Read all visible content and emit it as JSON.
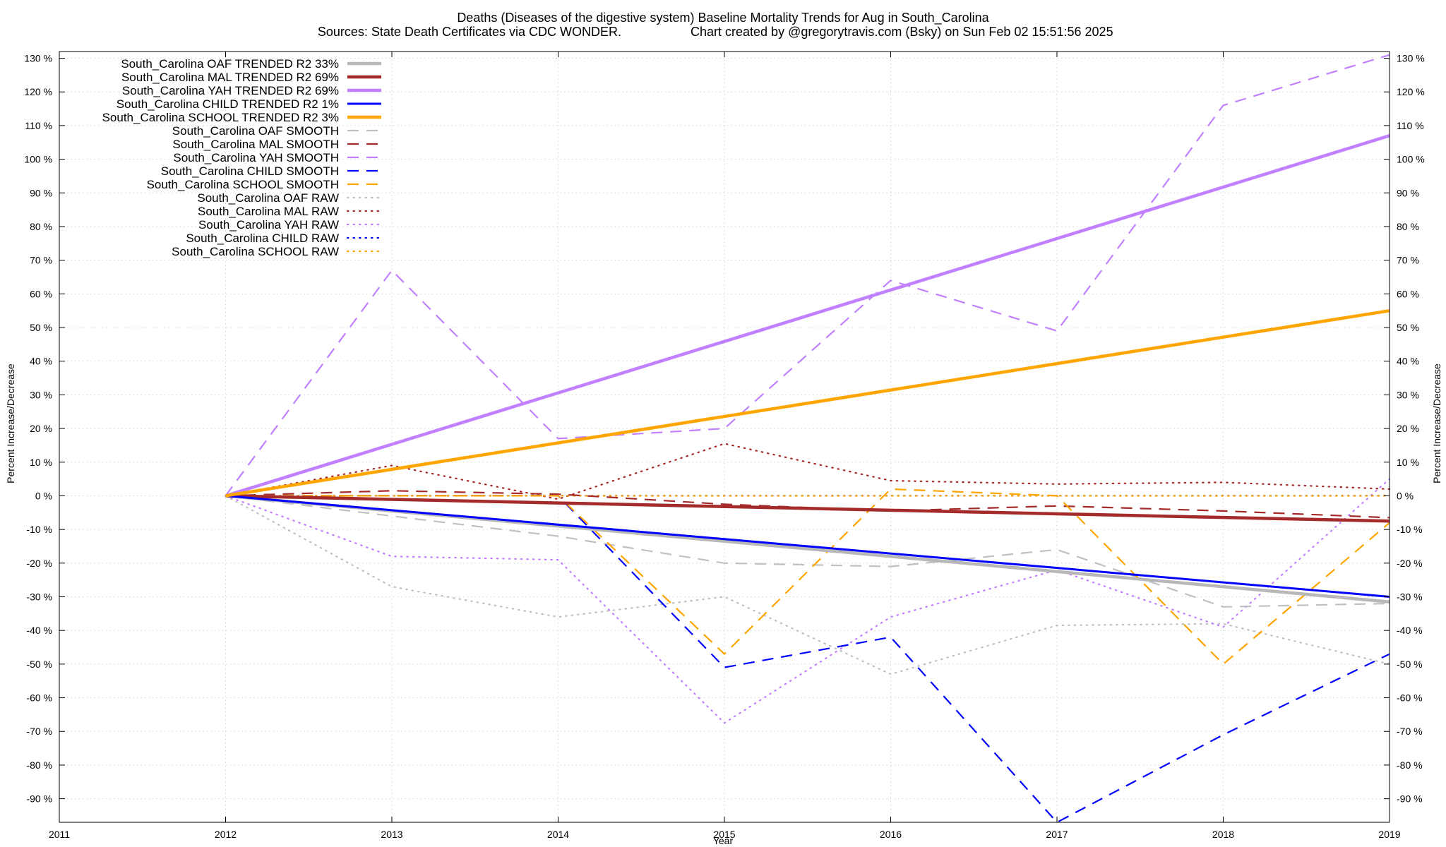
{
  "chart_data": {
    "type": "line",
    "title_line1": "Deaths (Diseases of the digestive system)  Baseline Mortality Trends for Aug in South_Carolina",
    "title_line2_left": "Sources: State Death Certificates via CDC WONDER.",
    "title_line2_right": "Chart created by @gregorytravis.com (Bsky) on Sun Feb 02 15:51:56 2025",
    "xlabel": "Year",
    "ylabel_left": "Percent Increase/Decrease",
    "ylabel_right": "Percent Increase/Decrease",
    "xlim": [
      2011,
      2019
    ],
    "ylim": [
      -97,
      132
    ],
    "x_ticks": [
      "2011",
      "2012",
      "2013",
      "2014",
      "2015",
      "2016",
      "2017",
      "2018",
      "2019"
    ],
    "y_ticks": [
      "130 %",
      "120 %",
      "110 %",
      "100 %",
      "90 %",
      "80 %",
      "70 %",
      "60 %",
      "50 %",
      "40 %",
      "30 %",
      "20 %",
      "10 %",
      "0 %",
      "-10 %",
      "-20 %",
      "-30 %",
      "-40 %",
      "-50 %",
      "-60 %",
      "-70 %",
      "-80 %",
      "-90 %"
    ],
    "grid": true,
    "legend_position": "top-left",
    "series": [
      {
        "name": "South_Carolina OAF TRENDED R2  33%",
        "style": "trend",
        "color": "#b8b8b8",
        "x": [
          2012,
          2019
        ],
        "y": [
          0,
          -31.5
        ]
      },
      {
        "name": "South_Carolina MAL TRENDED R2  69%",
        "style": "trend",
        "color": "#a52a2a",
        "x": [
          2012,
          2019
        ],
        "y": [
          0,
          -7.5
        ]
      },
      {
        "name": "South_Carolina YAH TRENDED R2  69%",
        "style": "trend",
        "color": "#c080ff",
        "x": [
          2012,
          2019
        ],
        "y": [
          0,
          107
        ]
      },
      {
        "name": "South_Carolina CHILD TRENDED R2   1%",
        "style": "trend",
        "color": "#0000ff",
        "x": [
          2012,
          2019
        ],
        "y": [
          0,
          -30
        ]
      },
      {
        "name": "South_Carolina SCHOOL TRENDED R2   3%",
        "style": "trend",
        "color": "#ffa500",
        "x": [
          2012,
          2019
        ],
        "y": [
          0,
          55
        ]
      },
      {
        "name": "South_Carolina OAF SMOOTH",
        "style": "smooth",
        "color": "#c0c0c0",
        "x": [
          2012,
          2013,
          2014,
          2015,
          2016,
          2017,
          2018,
          2019
        ],
        "y": [
          0,
          -6,
          -12,
          -20,
          -21,
          -16,
          -33,
          -32
        ]
      },
      {
        "name": "South_Carolina MAL SMOOTH",
        "style": "smooth",
        "color": "#a52a2a",
        "x": [
          2012,
          2013,
          2014,
          2015,
          2016,
          2017,
          2018,
          2019
        ],
        "y": [
          0,
          1.5,
          0.5,
          -2.5,
          -4.5,
          -3,
          -4.5,
          -6.5
        ]
      },
      {
        "name": "South_Carolina YAH SMOOTH",
        "style": "smooth",
        "color": "#c080ff",
        "x": [
          2012,
          2013,
          2014,
          2015,
          2016,
          2017,
          2018,
          2019
        ],
        "y": [
          0,
          67,
          17,
          20,
          64,
          49,
          116,
          131
        ]
      },
      {
        "name": "South_Carolina CHILD SMOOTH",
        "style": "smooth",
        "color": "#0000ff",
        "x": [
          2012,
          2013,
          2014,
          2015,
          2016,
          2017,
          2018,
          2019
        ],
        "y": [
          0,
          0,
          0,
          -51,
          -42,
          -97,
          -71,
          -47
        ]
      },
      {
        "name": "South_Carolina SCHOOL SMOOTH",
        "style": "smooth",
        "color": "#ffa500",
        "x": [
          2012,
          2013,
          2014,
          2015,
          2016,
          2017,
          2018,
          2019
        ],
        "y": [
          0,
          0,
          0,
          -47,
          2,
          0,
          -50,
          -8
        ]
      },
      {
        "name": "South_Carolina OAF RAW",
        "style": "raw",
        "color": "#c0c0c0",
        "x": [
          2012,
          2013,
          2014,
          2015,
          2016,
          2017,
          2018,
          2019
        ],
        "y": [
          0,
          -27,
          -36,
          -30,
          -53,
          -38.5,
          -38,
          -50
        ]
      },
      {
        "name": "South_Carolina MAL RAW",
        "style": "raw",
        "color": "#a52a2a",
        "x": [
          2012,
          2013,
          2014,
          2015,
          2016,
          2017,
          2018,
          2019
        ],
        "y": [
          0,
          9,
          -1,
          15.5,
          4.5,
          3.5,
          4,
          2
        ]
      },
      {
        "name": "South_Carolina YAH RAW",
        "style": "raw",
        "color": "#c080ff",
        "x": [
          2012,
          2013,
          2014,
          2015,
          2016,
          2017,
          2018,
          2019
        ],
        "y": [
          0,
          -18,
          -19,
          -67.5,
          -36,
          -22,
          -39,
          5
        ]
      },
      {
        "name": "South_Carolina CHILD RAW",
        "style": "raw",
        "color": "#0000ff",
        "x": [
          2012,
          2013,
          2014,
          2015,
          2016,
          2017,
          2018,
          2019
        ],
        "y": [
          0,
          0,
          0,
          0,
          0,
          0,
          0,
          0
        ]
      },
      {
        "name": "South_Carolina SCHOOL RAW",
        "style": "raw",
        "color": "#ffa500",
        "x": [
          2012,
          2013,
          2014,
          2015,
          2016,
          2017,
          2018,
          2019
        ],
        "y": [
          0,
          0,
          0,
          0,
          0,
          0,
          0,
          0
        ]
      }
    ]
  }
}
